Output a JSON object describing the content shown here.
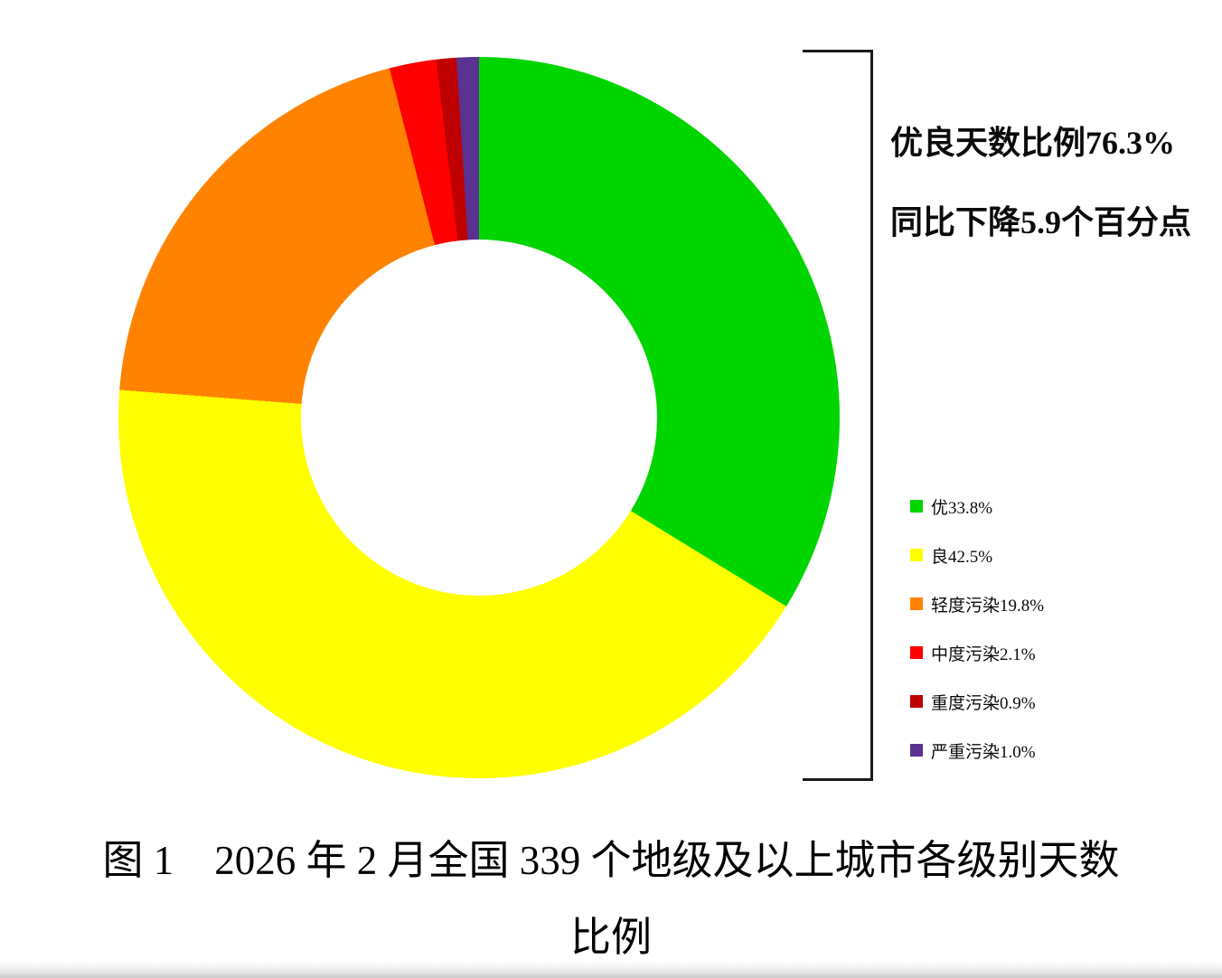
{
  "chart_data": {
    "type": "pie",
    "subtype": "donut",
    "title": "图 1　2026 年 2 月全国 339 个地级及以上城市各级别天数比例",
    "start_angle_deg": 0,
    "direction": "clockwise",
    "inner_radius_ratio": 0.49,
    "series": [
      {
        "name": "优",
        "value": 33.8,
        "color": "#00D500"
      },
      {
        "name": "良",
        "value": 42.5,
        "color": "#FFFF00"
      },
      {
        "name": "轻度污染",
        "value": 19.8,
        "color": "#FF8300"
      },
      {
        "name": "中度污染",
        "value": 2.1,
        "color": "#FF0000"
      },
      {
        "name": "重度污染",
        "value": 0.9,
        "color": "#BE0000"
      },
      {
        "name": "严重污染",
        "value": 1.0,
        "color": "#5B3192"
      }
    ],
    "legend_position": "right",
    "annotations": [
      "优良天数比例76.3%",
      "同比下降5.9个百分点"
    ]
  },
  "annotation": {
    "line1": "优良天数比例76.3%",
    "line2": "同比下降5.9个百分点"
  },
  "caption": {
    "line1": "图 1　2026 年 2 月全国 339 个地级及以上城市各级别天数",
    "line2": "比例"
  },
  "colors": {
    "bracket": "#1a1a1a",
    "background": "#ffffff"
  }
}
